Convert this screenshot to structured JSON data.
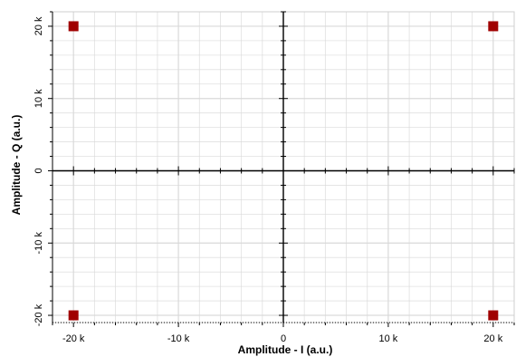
{
  "chart_data": {
    "type": "scatter",
    "title": "",
    "xlabel": "Amplitude - I (a.u.)",
    "ylabel": "Amplitude - Q (a.u.)",
    "xlim": [
      -22000,
      22000
    ],
    "ylim": [
      -21000,
      22000
    ],
    "x_ticks": [
      {
        "value": -20000,
        "label": "-20 k"
      },
      {
        "value": -10000,
        "label": "-10 k"
      },
      {
        "value": 0,
        "label": "0"
      },
      {
        "value": 10000,
        "label": "10 k"
      },
      {
        "value": 20000,
        "label": "20 k"
      }
    ],
    "y_ticks": [
      {
        "value": 20000,
        "label": "20 k"
      },
      {
        "value": 10000,
        "label": "10 k"
      },
      {
        "value": 0,
        "label": "0"
      },
      {
        "value": -10000,
        "label": "-10 k"
      },
      {
        "value": -20000,
        "label": "-20 k"
      }
    ],
    "grid": true,
    "marker_color": "#a00000",
    "grid_color": "#d9d9d9",
    "points": [
      {
        "x": -20000,
        "y": 20000
      },
      {
        "x": 20000,
        "y": 20000
      },
      {
        "x": -20000,
        "y": -20000
      },
      {
        "x": 20000,
        "y": -20000
      }
    ]
  }
}
